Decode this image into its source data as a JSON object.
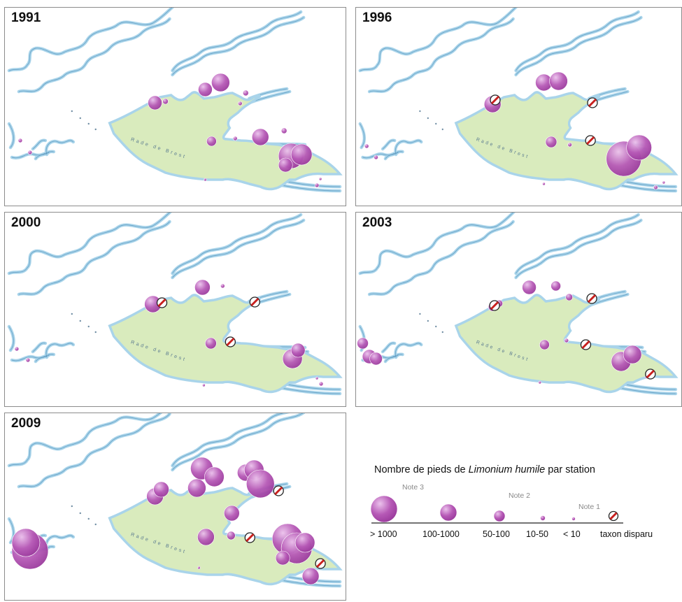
{
  "panels": [
    {
      "year": "1991"
    },
    {
      "year": "1996"
    },
    {
      "year": "2000"
    },
    {
      "year": "2003"
    },
    {
      "year": "2009"
    }
  ],
  "map_text": "Rade de Brest",
  "legend": {
    "title_prefix": "Nombre de pieds de ",
    "title_species": "Limonium humile",
    "title_suffix": " par station",
    "notes": [
      "Note 3",
      "Note 2",
      "Note 1"
    ],
    "classes": [
      "> 1000",
      "100-1000",
      "50-100",
      "10-50",
      "< 10",
      "taxon disparu"
    ]
  },
  "colors": {
    "bay": "#d9ebbd",
    "coast": "#a9d4ea",
    "station": "#b659b6",
    "station_highlight": "#ebc2ec",
    "border": "#8c8c8c"
  },
  "icons": [
    "circle-marker",
    "prohibited-icon"
  ]
}
